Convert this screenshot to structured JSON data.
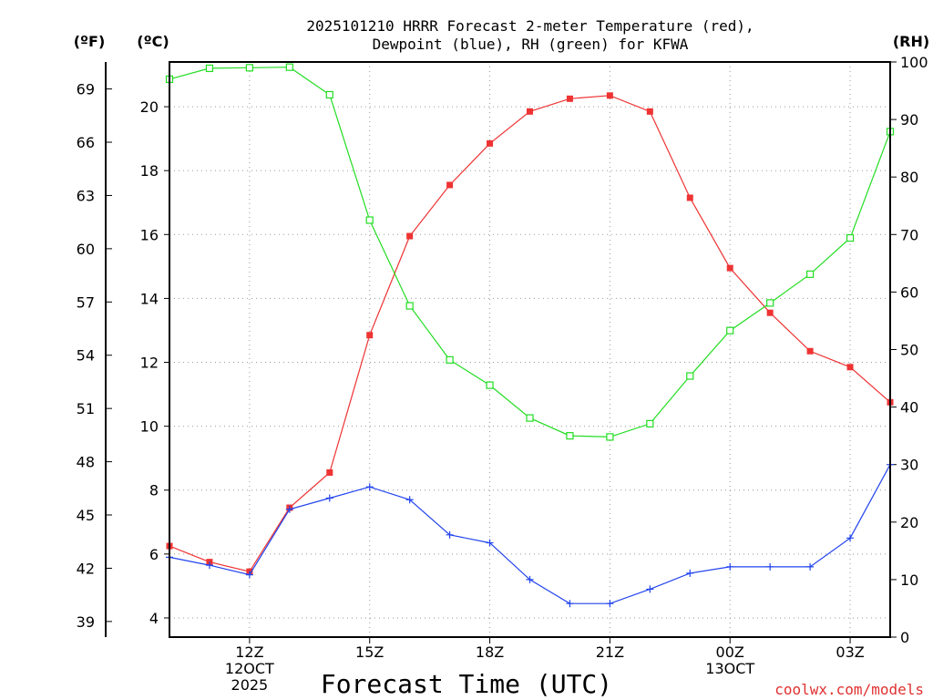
{
  "chart_data": {
    "type": "line",
    "title_line1": "2025101210 HRRR Forecast 2-meter Temperature (red),",
    "title_line2": "Dewpoint (blue), RH (green) for KFWA",
    "xlabel": "Forecast Time (UTC)",
    "credit": "coolwx.com/models",
    "units": {
      "fahrenheit": "(ºF)",
      "celsius": "(ºC)",
      "rh": "(RH)"
    },
    "x": [
      10,
      11,
      12,
      13,
      14,
      15,
      16,
      17,
      18,
      19,
      20,
      21,
      22,
      23,
      24,
      25,
      26,
      27,
      28
    ],
    "xlim": [
      10,
      28
    ],
    "x_ticks": [
      {
        "x": 12,
        "lines": [
          "12Z",
          "12OCT",
          "2025"
        ]
      },
      {
        "x": 15,
        "lines": [
          "15Z"
        ]
      },
      {
        "x": 18,
        "lines": [
          "18Z"
        ]
      },
      {
        "x": 21,
        "lines": [
          "21Z"
        ]
      },
      {
        "x": 24,
        "lines": [
          "00Z",
          "13OCT"
        ]
      },
      {
        "x": 27,
        "lines": [
          "03Z"
        ]
      }
    ],
    "celsius_ylim": [
      3.4,
      21.4
    ],
    "celsius_ticks": [
      "4",
      "6",
      "8",
      "10",
      "12",
      "14",
      "16",
      "18",
      "20"
    ],
    "fahrenheit_ticks": [
      "39",
      "42",
      "45",
      "48",
      "51",
      "54",
      "57",
      "60",
      "63",
      "66",
      "69"
    ],
    "rh_ylim": [
      0,
      100
    ],
    "rh_ticks": [
      "0",
      "10",
      "20",
      "30",
      "40",
      "50",
      "60",
      "70",
      "80",
      "90",
      "100"
    ],
    "series": [
      {
        "name": "Temperature",
        "axis": "celsius",
        "color": "#ee3333",
        "marker": "filled-square",
        "values": [
          6.25,
          5.75,
          5.45,
          7.45,
          8.55,
          12.85,
          15.95,
          17.55,
          18.85,
          19.85,
          20.25,
          20.35,
          19.85,
          17.15,
          14.95,
          13.55,
          12.35,
          11.85,
          10.75
        ]
      },
      {
        "name": "Dewpoint",
        "axis": "celsius",
        "color": "#2244ee",
        "marker": "plus",
        "values": [
          5.9,
          5.65,
          5.35,
          7.4,
          7.75,
          8.1,
          7.7,
          6.6,
          6.35,
          5.2,
          4.45,
          4.45,
          4.9,
          5.4,
          5.6,
          5.6,
          5.6,
          6.5,
          8.8
        ]
      },
      {
        "name": "RH",
        "axis": "rh",
        "color": "#22dd22",
        "marker": "open-square",
        "values": [
          97.0,
          98.9,
          99.0,
          99.1,
          94.3,
          72.5,
          57.6,
          48.2,
          43.8,
          38.1,
          35.0,
          34.8,
          37.1,
          45.4,
          53.3,
          58.1,
          63.1,
          69.4,
          87.9
        ]
      }
    ]
  }
}
